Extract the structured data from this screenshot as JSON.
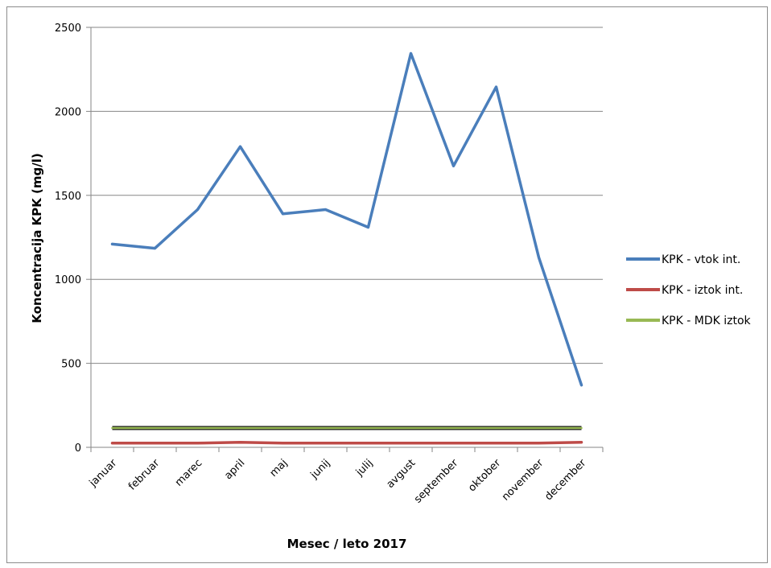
{
  "chart_data": {
    "type": "line",
    "title": "",
    "xlabel": "Mesec / leto 2017",
    "ylabel": "Koncentracija KPK (mg/l)",
    "ylim": [
      0,
      2500
    ],
    "yticks": [
      "0",
      "500",
      "1000",
      "1500",
      "2000",
      "2500"
    ],
    "grid": true,
    "legend_position": "right",
    "categories": [
      "januar",
      "februar",
      "marec",
      "april",
      "maj",
      "junij",
      "julij",
      "avgust",
      "september",
      "oktober",
      "november",
      "december"
    ],
    "series": [
      {
        "name": "KPK - vtok int.",
        "color": "#4a7ebb",
        "values": [
          1210,
          1185,
          1415,
          1790,
          1390,
          1415,
          1310,
          2345,
          1675,
          2145,
          1130,
          370
        ]
      },
      {
        "name": "KPK - iztok int.",
        "color": "#be4b48",
        "values": [
          25,
          25,
          25,
          30,
          25,
          25,
          25,
          25,
          25,
          25,
          25,
          30
        ]
      },
      {
        "name": "KPK - MDK iztok",
        "color": "#98b954",
        "values": [
          115,
          115,
          115,
          115,
          115,
          115,
          115,
          115,
          115,
          115,
          115,
          115
        ]
      }
    ]
  }
}
